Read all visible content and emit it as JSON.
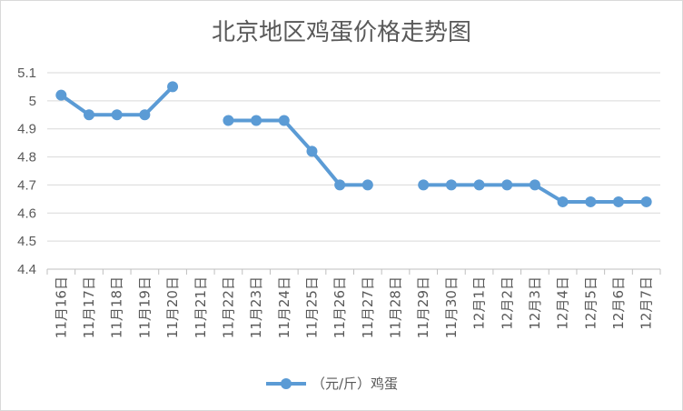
{
  "chart_data": {
    "type": "line",
    "title": "北京地区鸡蛋价格走势图",
    "categories": [
      "11月16日",
      "11月17日",
      "11月18日",
      "11月19日",
      "11月20日",
      "11月21日",
      "11月22日",
      "11月23日",
      "11月24日",
      "11月25日",
      "11月26日",
      "11月27日",
      "11月28日",
      "11月29日",
      "11月30日",
      "12月1日",
      "12月2日",
      "12月3日",
      "12月4日",
      "12月5日",
      "12月6日",
      "12月7日"
    ],
    "series": [
      {
        "name": "（元/斤）鸡蛋",
        "values": [
          5.02,
          4.95,
          4.95,
          4.95,
          5.05,
          null,
          4.93,
          4.93,
          4.93,
          4.82,
          4.7,
          4.7,
          null,
          4.7,
          4.7,
          4.7,
          4.7,
          4.7,
          4.64,
          4.64,
          4.64,
          4.64
        ],
        "color": "#5b9bd5"
      }
    ],
    "yticks": [
      "4.4",
      "4.5",
      "4.6",
      "4.7",
      "4.8",
      "4.9",
      "5",
      "5.1"
    ],
    "ylim": [
      4.4,
      5.1
    ],
    "grid": true,
    "legend_position": "bottom"
  }
}
